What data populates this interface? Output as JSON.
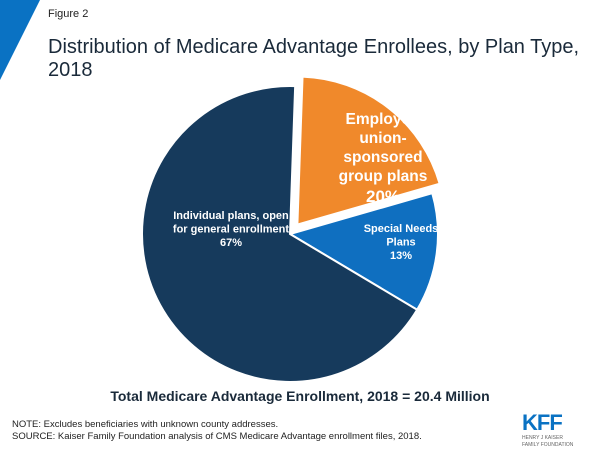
{
  "figure_label": "Figure 2",
  "title": "Distribution of Medicare Advantage Enrollees, by Plan Type, 2018",
  "total_label": "Total Medicare Advantage Enrollment, 2018 = 20.4 Million",
  "note": "NOTE: Excludes beneficiaries with unknown county addresses.",
  "source": "SOURCE:  Kaiser Family Foundation analysis of CMS Medicare Advantage enrollment files, 2018.",
  "logo": {
    "text": "KFF",
    "subtext_line1": "HENRY J KAISER",
    "subtext_line2": "FAMILY FOUNDATION"
  },
  "colors": {
    "accent_blue": "#0a72c3",
    "individual": "#163a5c",
    "employer": "#f0892b",
    "snp": "#0f6fc0"
  },
  "chart_data": {
    "type": "pie",
    "title": "Distribution of Medicare Advantage Enrollees, by Plan Type, 2018",
    "slices": [
      {
        "label_lines": [
          "Employer/",
          "union-",
          "sponsored",
          "group plans"
        ],
        "value": 20,
        "value_label": "20%",
        "color": "#f0892b",
        "exploded": true
      },
      {
        "label_lines": [
          "Special Needs",
          "Plans"
        ],
        "value": 13,
        "value_label": "13%",
        "color": "#0f6fc0",
        "exploded": false
      },
      {
        "label_lines": [
          "Individual plans, open",
          "for general enrollment"
        ],
        "value": 67,
        "value_label": "67%",
        "color": "#163a5c",
        "exploded": false
      }
    ]
  }
}
